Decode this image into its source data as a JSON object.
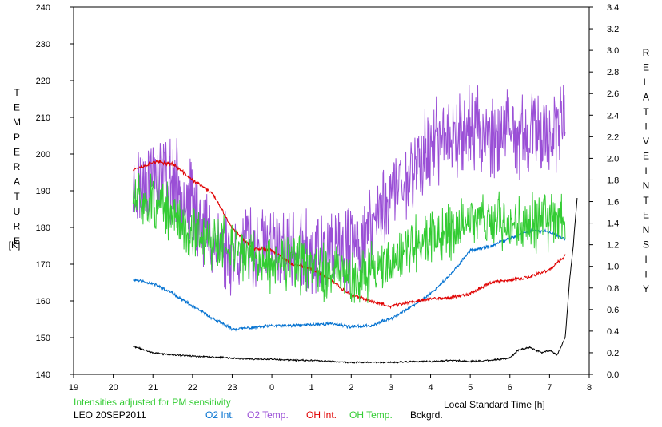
{
  "chart_data": {
    "type": "line",
    "left_axis_label": "TEMPERATURE",
    "left_axis_unit": "[K]",
    "right_axis_label_1": "RELATIVE",
    "right_axis_label_2": "INTENSITY",
    "xlabel": "Local Standard Time [h]",
    "note": "Intensities adjusted for PM sensitivity",
    "caption": "LEO 20SEP2011",
    "xlim": [
      19,
      32
    ],
    "x_tick_labels": [
      "19",
      "20",
      "21",
      "22",
      "23",
      "0",
      "1",
      "2",
      "3",
      "4",
      "5",
      "6",
      "7",
      "8"
    ],
    "ylim_left": [
      140,
      240
    ],
    "y_left_ticks": [
      "140",
      "150",
      "160",
      "170",
      "180",
      "190",
      "200",
      "210",
      "220",
      "230",
      "240"
    ],
    "ylim_right": [
      0,
      3.4
    ],
    "y_right_ticks": [
      "0.0",
      "0.2",
      "0.4",
      "0.6",
      "0.8",
      "1.0",
      "1.2",
      "1.4",
      "1.6",
      "1.8",
      "2.0",
      "2.2",
      "2.4",
      "2.6",
      "2.8",
      "3.0",
      "3.2",
      "3.4"
    ],
    "grid": false,
    "series": [
      {
        "name": "O2 Int.",
        "color": "#0070d0",
        "axis": "right",
        "noise": 0.012,
        "seed": 11,
        "x": [
          20.5,
          21.0,
          21.5,
          22.0,
          22.5,
          23.0,
          23.5,
          24.0,
          24.5,
          25.0,
          25.5,
          26.0,
          26.5,
          27.0,
          27.5,
          28.0,
          28.5,
          29.0,
          29.5,
          30.0,
          30.5,
          31.0,
          31.4
        ],
        "values": [
          0.88,
          0.84,
          0.75,
          0.63,
          0.52,
          0.42,
          0.43,
          0.45,
          0.45,
          0.46,
          0.47,
          0.44,
          0.45,
          0.52,
          0.62,
          0.75,
          0.92,
          1.15,
          1.18,
          1.26,
          1.33,
          1.32,
          1.25
        ]
      },
      {
        "name": "O2 Temp.",
        "color": "#9a4fd6",
        "axis": "left",
        "noise": 9,
        "seed": 23,
        "x": [
          20.5,
          21.0,
          21.5,
          22.0,
          22.5,
          23.0,
          23.5,
          24.0,
          24.5,
          25.0,
          25.5,
          26.0,
          26.5,
          27.0,
          27.5,
          28.0,
          28.5,
          29.0,
          29.5,
          30.0,
          30.5,
          31.0,
          31.4
        ],
        "values": [
          190,
          195,
          193,
          186,
          176,
          174,
          175,
          175,
          173,
          172,
          172,
          174,
          180,
          189,
          195,
          202,
          206,
          207,
          206,
          205,
          205,
          206,
          207
        ]
      },
      {
        "name": "OH Int.",
        "color": "#e00000",
        "axis": "right",
        "noise": 0.013,
        "seed": 37,
        "x": [
          20.5,
          20.8,
          21.0,
          21.5,
          22.0,
          22.5,
          23.0,
          23.5,
          24.0,
          24.5,
          25.0,
          25.5,
          26.0,
          26.5,
          27.0,
          27.5,
          28.0,
          28.5,
          29.0,
          29.5,
          30.0,
          30.5,
          31.0,
          31.4
        ],
        "values": [
          1.9,
          1.93,
          1.97,
          1.95,
          1.8,
          1.68,
          1.35,
          1.17,
          1.15,
          1.02,
          0.98,
          0.87,
          0.73,
          0.68,
          0.63,
          0.67,
          0.7,
          0.71,
          0.75,
          0.85,
          0.87,
          0.9,
          0.97,
          1.1
        ]
      },
      {
        "name": "OH Temp.",
        "color": "#33cc33",
        "axis": "left",
        "noise": 6,
        "seed": 51,
        "x": [
          20.5,
          21.0,
          21.5,
          22.0,
          22.5,
          23.0,
          23.5,
          24.0,
          24.5,
          25.0,
          25.5,
          26.0,
          26.5,
          27.0,
          27.5,
          28.0,
          28.5,
          29.0,
          29.5,
          30.0,
          30.5,
          31.0,
          31.4
        ],
        "values": [
          187,
          187,
          183,
          179,
          176,
          175,
          172,
          170,
          171,
          168,
          167,
          167,
          168,
          171,
          175,
          177,
          179,
          182,
          182,
          181,
          181,
          182,
          182
        ]
      },
      {
        "name": "Bckgrd.",
        "color": "#000000",
        "axis": "right",
        "noise": 0.006,
        "seed": 71,
        "x": [
          20.5,
          21.0,
          21.5,
          22.0,
          22.5,
          23.0,
          23.5,
          24.0,
          24.5,
          25.0,
          25.5,
          26.0,
          26.5,
          27.0,
          27.5,
          28.0,
          28.5,
          29.0,
          29.5,
          30.0,
          30.2,
          30.5,
          30.8,
          31.0,
          31.2,
          31.4,
          31.5,
          31.6,
          31.7
        ],
        "values": [
          0.26,
          0.2,
          0.18,
          0.17,
          0.16,
          0.15,
          0.14,
          0.14,
          0.13,
          0.13,
          0.12,
          0.11,
          0.11,
          0.11,
          0.12,
          0.12,
          0.13,
          0.12,
          0.13,
          0.15,
          0.22,
          0.25,
          0.2,
          0.22,
          0.18,
          0.35,
          0.85,
          1.2,
          1.65
        ]
      }
    ]
  }
}
